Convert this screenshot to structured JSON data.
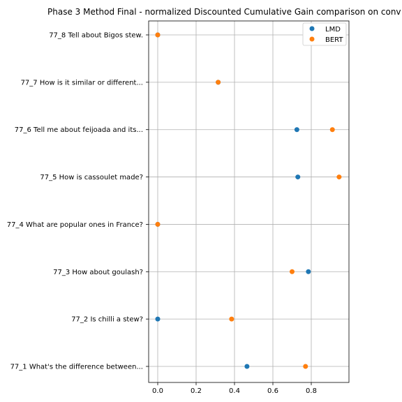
{
  "chart_data": {
    "type": "scatter",
    "title": "Phase 3 Method Final - normalized Discounted Cumulative Gain comparison on conv",
    "xlabel": "",
    "ylabel": "",
    "xlim": [
      -0.05,
      1.0
    ],
    "xticks": [
      0.0,
      0.2,
      0.4,
      0.6,
      0.8
    ],
    "xtick_labels": [
      "0.0",
      "0.2",
      "0.4",
      "0.6",
      "0.8"
    ],
    "grid": true,
    "legend_position": "top-right",
    "categories": [
      "77_8 Tell about Bigos stew.",
      "77_7 How is it similar or different...",
      "77_6 Tell me about feijoada and its...",
      "77_5 How is cassoulet made?",
      "77_4 What are popular ones in France?",
      "77_3 How about goulash?",
      "77_2 Is chilli a stew?",
      "77_1 What's the difference between..."
    ],
    "series": [
      {
        "name": "LMD",
        "color": "#1f77b4",
        "values": [
          0.0,
          0.315,
          0.725,
          0.73,
          0.0,
          0.785,
          0.0,
          0.465
        ]
      },
      {
        "name": "BERT",
        "color": "#ff7f0e",
        "values": [
          0.0,
          0.315,
          0.91,
          0.945,
          0.0,
          0.7,
          0.385,
          0.77
        ]
      }
    ]
  }
}
